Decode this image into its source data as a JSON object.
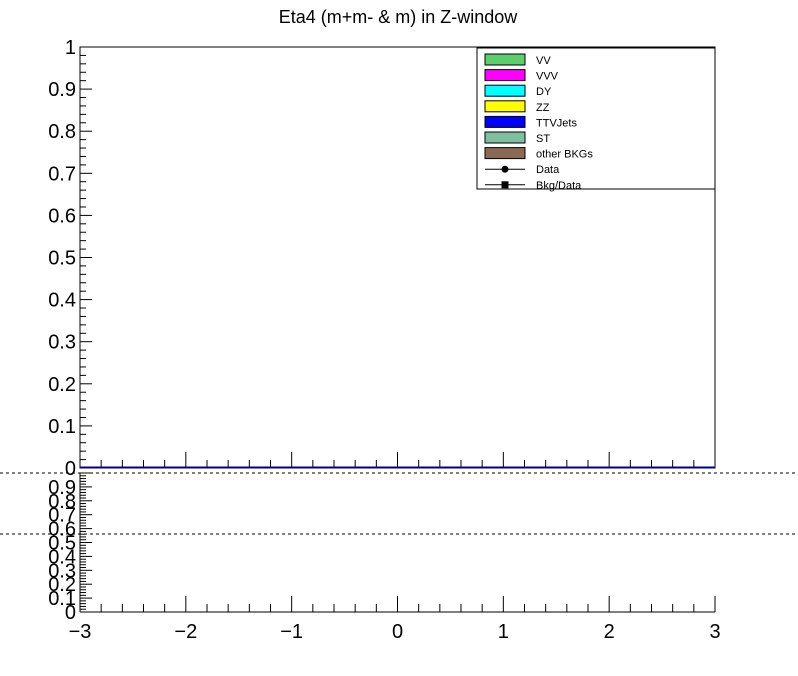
{
  "chart_data": [
    {
      "type": "bar",
      "title": "Eta4 (m+m- & m) in Z-window",
      "xlabel": "",
      "ylabel": "",
      "xlim": [
        -3,
        3
      ],
      "ylim": [
        0,
        1
      ],
      "x_ticks": [
        "−3",
        "−2",
        "−1",
        "0",
        "1",
        "2",
        "3"
      ],
      "y_ticks": [
        "0",
        "0.1",
        "0.2",
        "0.3",
        "0.4",
        "0.5",
        "0.6",
        "0.7",
        "0.8",
        "0.9",
        "1"
      ],
      "grid": false,
      "legend_position": "top-right",
      "series": [
        {
          "name": "VV",
          "color": "#5cce6b",
          "style": "fill",
          "values": []
        },
        {
          "name": "VVV",
          "color": "#ff00ff",
          "style": "fill",
          "values": []
        },
        {
          "name": "DY",
          "color": "#00ffff",
          "style": "fill",
          "values": []
        },
        {
          "name": "ZZ",
          "color": "#ffff00",
          "style": "fill",
          "values": []
        },
        {
          "name": "TTVJets",
          "color": "#0000ff",
          "style": "fill",
          "values": []
        },
        {
          "name": "ST",
          "color": "#7fbf9f",
          "style": "fill",
          "values": []
        },
        {
          "name": "other BKGs",
          "color": "#8b6a55",
          "style": "fill",
          "values": []
        },
        {
          "name": "Data",
          "color": "#000000",
          "style": "marker-circle",
          "values": []
        },
        {
          "name": "Bkg/Data",
          "color": "#000000",
          "style": "marker-square",
          "values": []
        }
      ],
      "baseline_color": "#000080"
    },
    {
      "type": "scatter",
      "title": "",
      "xlim": [
        -3,
        3
      ],
      "ylim": [
        0,
        1
      ],
      "x_ticks": [
        "−3",
        "−2",
        "−1",
        "0",
        "1",
        "2",
        "3"
      ],
      "y_ticks": [
        "0",
        "0.1",
        "0.2",
        "0.3",
        "0.4",
        "0.5",
        "0.6",
        "0.7",
        "0.8",
        "0.9"
      ],
      "reference_lines": [
        {
          "y": 1
        },
        {
          "y": 0.5
        }
      ],
      "series": []
    }
  ]
}
